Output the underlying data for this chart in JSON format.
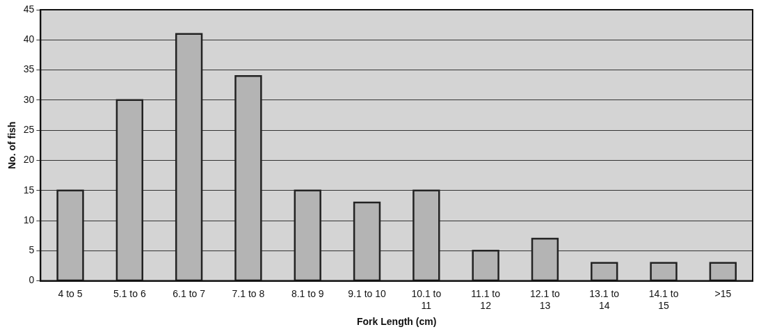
{
  "chart_data": {
    "type": "bar",
    "xlabel": "Fork Length (cm)",
    "ylabel": "No. of fish",
    "categories": [
      "4 to 5",
      "5.1 to 6",
      "6.1 to 7",
      "7.1 to 8",
      "8.1 to 9",
      "9.1 to 10",
      "10.1 to 11",
      "11.1 to 12",
      "12.1 to 13",
      "13.1 to 14",
      "14.1 to 15",
      ">15"
    ],
    "values": [
      15,
      30,
      41,
      34,
      15,
      13,
      15,
      5,
      7,
      3,
      3,
      3
    ],
    "color": "#b4b4b4",
    "ylim": [
      0,
      45
    ],
    "yticks": [
      0,
      5,
      10,
      15,
      20,
      25,
      30,
      35,
      40,
      45
    ],
    "grid": "y",
    "legend": false
  }
}
